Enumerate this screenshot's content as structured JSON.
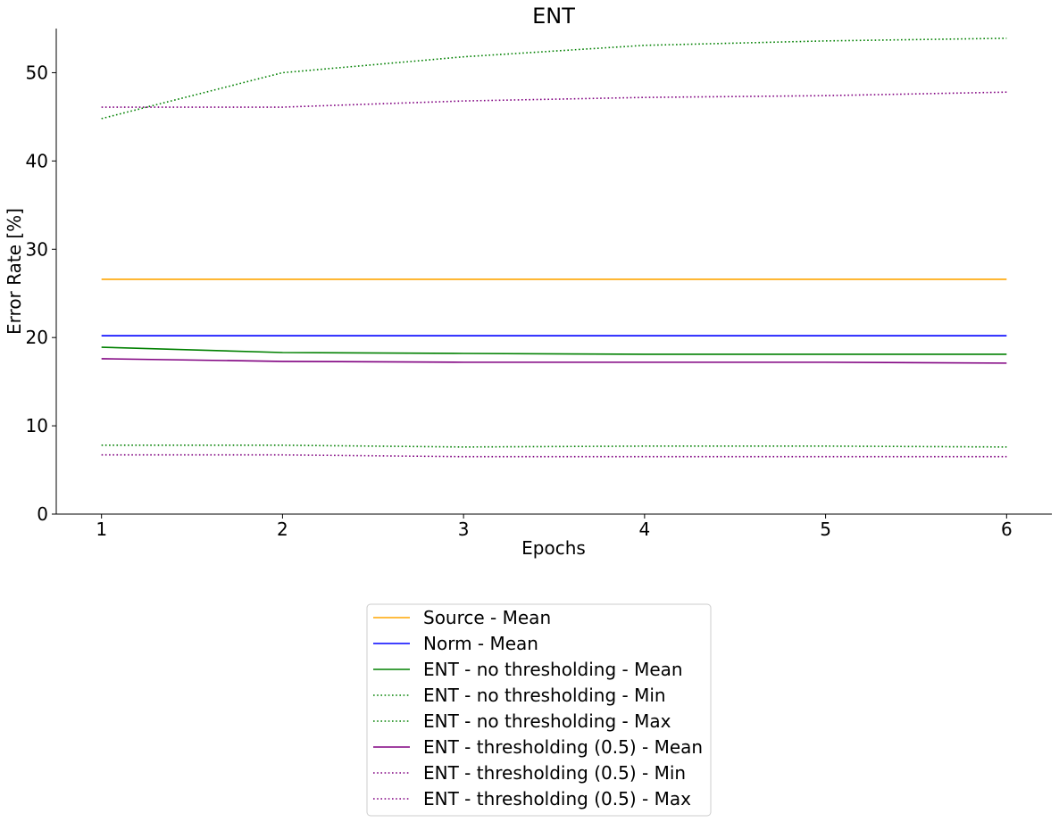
{
  "chart_data": {
    "type": "line",
    "title": "ENT",
    "xlabel": "Epochs",
    "ylabel": "Error Rate [%]",
    "xlim": [
      0.75,
      6.25
    ],
    "ylim": [
      0,
      55
    ],
    "x": [
      1,
      2,
      3,
      4,
      5,
      6
    ],
    "xticks": [
      1,
      2,
      3,
      4,
      5,
      6
    ],
    "yticks": [
      0,
      10,
      20,
      30,
      40,
      50
    ],
    "grid": false,
    "legend_placement": "below",
    "series": [
      {
        "name": "Source - Mean",
        "color": "#ffa500",
        "style": "solid",
        "values": [
          26.6,
          26.6,
          26.6,
          26.6,
          26.6,
          26.6
        ]
      },
      {
        "name": "Norm - Mean",
        "color": "#0000ff",
        "style": "solid",
        "values": [
          20.2,
          20.2,
          20.2,
          20.2,
          20.2,
          20.2
        ]
      },
      {
        "name": "ENT - no thresholding - Mean",
        "color": "#008000",
        "style": "solid",
        "values": [
          18.9,
          18.3,
          18.2,
          18.1,
          18.1,
          18.1
        ]
      },
      {
        "name": "ENT - no thresholding - Min",
        "color": "#008000",
        "style": "dotted",
        "values": [
          7.8,
          7.8,
          7.6,
          7.7,
          7.7,
          7.6
        ]
      },
      {
        "name": "ENT - no thresholding - Max",
        "color": "#008000",
        "style": "dotted",
        "values": [
          44.8,
          50.0,
          51.8,
          53.1,
          53.6,
          53.9
        ]
      },
      {
        "name": "ENT - thresholding (0.5) - Mean",
        "color": "#800080",
        "style": "solid",
        "values": [
          17.6,
          17.3,
          17.2,
          17.2,
          17.2,
          17.1
        ]
      },
      {
        "name": "ENT - thresholding (0.5) - Min",
        "color": "#800080",
        "style": "dotted",
        "values": [
          6.7,
          6.7,
          6.5,
          6.5,
          6.5,
          6.5
        ]
      },
      {
        "name": "ENT - thresholding (0.5) - Max",
        "color": "#800080",
        "style": "dotted",
        "values": [
          46.1,
          46.1,
          46.8,
          47.2,
          47.4,
          47.8
        ]
      }
    ]
  }
}
